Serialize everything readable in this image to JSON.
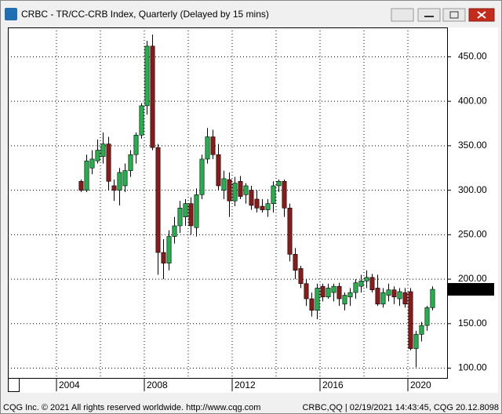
{
  "chart_data": {
    "type": "candlestick",
    "title": "CRBC - TR/CC-CRB Index, Quarterly (Delayed by 15 mins)",
    "x": [
      2005,
      2005.25,
      2005.5,
      2005.75,
      2006,
      2006.25,
      2006.5,
      2006.75,
      2007,
      2007.25,
      2007.5,
      2007.75,
      2008,
      2008.25,
      2008.5,
      2008.75,
      2009,
      2009.25,
      2009.5,
      2009.75,
      2010,
      2010.25,
      2010.5,
      2010.75,
      2011,
      2011.25,
      2011.5,
      2011.75,
      2012,
      2012.25,
      2012.5,
      2012.75,
      2013,
      2013.25,
      2013.5,
      2013.75,
      2014,
      2014.25,
      2014.5,
      2014.75,
      2015,
      2015.25,
      2015.5,
      2015.75,
      2016,
      2016.25,
      2016.5,
      2016.75,
      2017,
      2017.25,
      2017.5,
      2017.75,
      2018,
      2018.25,
      2018.5,
      2018.75,
      2019,
      2019.25,
      2019.5,
      2019.75,
      2020,
      2020.25,
      2020.5,
      2020.75,
      2021
    ],
    "open": [
      310,
      300,
      325,
      333,
      338,
      352,
      305,
      300,
      305,
      322,
      340,
      362,
      395,
      462,
      348,
      230,
      218,
      248,
      260,
      270,
      285,
      258,
      295,
      335,
      360,
      340,
      300,
      312,
      288,
      310,
      295,
      300,
      290,
      282,
      278,
      285,
      305,
      310,
      280,
      228,
      212,
      195,
      178,
      165,
      192,
      180,
      185,
      192,
      172,
      180,
      185,
      192,
      198,
      202,
      190,
      172,
      182,
      188,
      178,
      185,
      186,
      122,
      138,
      148,
      168
    ],
    "high": [
      312,
      340,
      345,
      357,
      365,
      360,
      312,
      325,
      330,
      345,
      365,
      398,
      468,
      475,
      352,
      245,
      255,
      270,
      288,
      290,
      292,
      302,
      340,
      370,
      368,
      352,
      322,
      320,
      315,
      316,
      308,
      305,
      300,
      290,
      290,
      310,
      312,
      312,
      285,
      235,
      215,
      200,
      185,
      195,
      195,
      195,
      195,
      196,
      185,
      190,
      200,
      205,
      210,
      206,
      205,
      190,
      195,
      192,
      190,
      190,
      190,
      142,
      152,
      170,
      192
    ],
    "low": [
      298,
      298,
      318,
      330,
      330,
      300,
      288,
      283,
      298,
      315,
      330,
      358,
      385,
      345,
      205,
      200,
      210,
      240,
      252,
      260,
      250,
      248,
      290,
      330,
      335,
      300,
      290,
      270,
      282,
      290,
      285,
      278,
      275,
      275,
      270,
      275,
      298,
      270,
      220,
      200,
      190,
      170,
      158,
      155,
      175,
      178,
      175,
      170,
      165,
      170,
      178,
      185,
      190,
      185,
      170,
      168,
      175,
      172,
      170,
      168,
      120,
      101,
      130,
      142,
      165
    ],
    "close": [
      300,
      333,
      335,
      345,
      352,
      310,
      300,
      320,
      322,
      340,
      362,
      395,
      462,
      348,
      230,
      218,
      248,
      260,
      280,
      285,
      260,
      295,
      335,
      360,
      340,
      305,
      313,
      288,
      308,
      293,
      305,
      283,
      280,
      278,
      285,
      305,
      310,
      280,
      228,
      210,
      195,
      178,
      165,
      190,
      180,
      190,
      192,
      178,
      182,
      185,
      196,
      198,
      202,
      188,
      172,
      185,
      188,
      180,
      186,
      172,
      122,
      138,
      148,
      168,
      188.62
    ],
    "up_color": "#22b14c",
    "down_color": "#8b1a1a",
    "xlim": [
      2001.786,
      2021.786
    ],
    "xticks": [
      2004,
      2008,
      2012,
      2016,
      2020
    ],
    "xgridlines": [
      2004,
      2006,
      2008,
      2010,
      2012,
      2014,
      2016,
      2018,
      2020
    ],
    "ylim": [
      89,
      483
    ],
    "yticks": [
      {
        "value": 100,
        "label": "100.00"
      },
      {
        "value": 150,
        "label": "150.00"
      },
      {
        "value": 200,
        "label": "200.00"
      },
      {
        "value": 250,
        "label": "250.00"
      },
      {
        "value": 300,
        "label": "300.00"
      },
      {
        "value": 350,
        "label": "350.00"
      },
      {
        "value": 400,
        "label": "400.00"
      },
      {
        "value": 450,
        "label": "450.00"
      }
    ],
    "grid": true
  },
  "status_bar": {
    "left": "CQG Inc. © 2021 All rights reserved worldwide. http://www.cqg.com",
    "right": "CRBC,QQ | 02/19/2021 14:43:45, CQG 20.12.8098"
  }
}
